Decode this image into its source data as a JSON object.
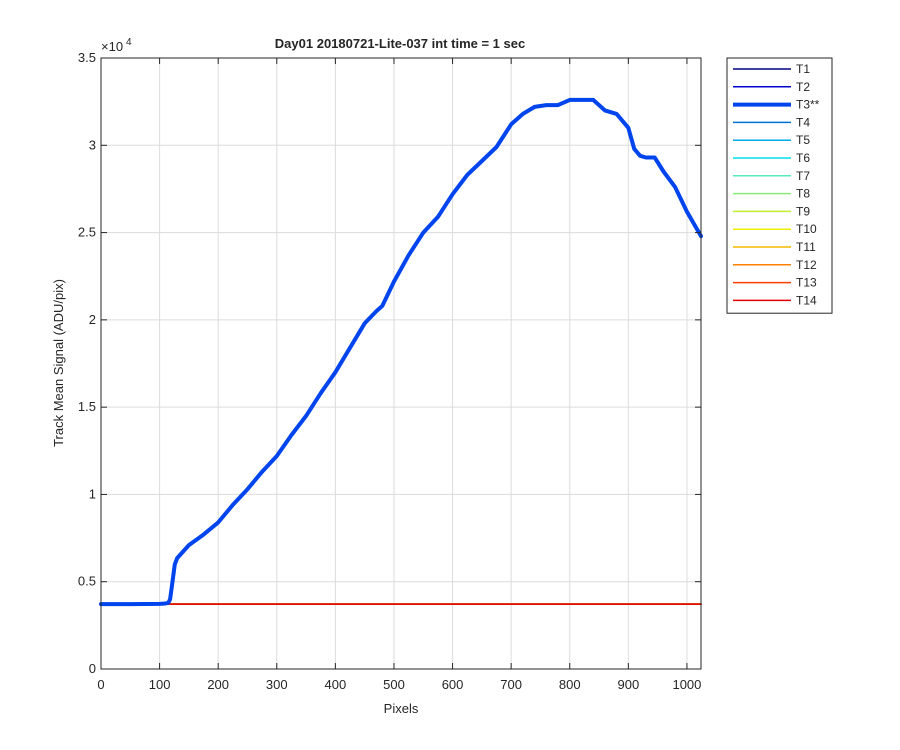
{
  "chart_data": {
    "type": "line",
    "title": "Day01 20180721-Lite-037 int time = 1 sec",
    "xlabel": "Pixels",
    "ylabel": "Track Mean Signal (ADU/pix)",
    "xlim": [
      0,
      1024
    ],
    "ylim": [
      0,
      35000
    ],
    "xticks": [
      0,
      100,
      200,
      300,
      400,
      500,
      600,
      700,
      800,
      900,
      1000
    ],
    "xtick_labels": [
      "0",
      "100",
      "200",
      "300",
      "400",
      "500",
      "600",
      "700",
      "800",
      "900",
      "1000"
    ],
    "yticks": [
      0,
      5000,
      10000,
      15000,
      20000,
      25000,
      30000,
      35000
    ],
    "ytick_labels": [
      "0",
      "0.5",
      "1",
      "1.5",
      "2",
      "2.5",
      "3",
      "3.5"
    ],
    "y_exponent_base": "×10",
    "y_exponent_power": "4",
    "grid": true,
    "legend_position": "outside-right-top",
    "series": [
      {
        "name": "T1",
        "color": "#00007f",
        "width": 1.5,
        "x": [
          0,
          1024
        ],
        "y": [
          3720,
          3720
        ]
      },
      {
        "name": "T2",
        "color": "#0000d0",
        "width": 1.5,
        "x": [
          0,
          1024
        ],
        "y": [
          3720,
          3720
        ]
      },
      {
        "name": "T3**",
        "color": "#0044ee",
        "width": 4,
        "x": [
          0,
          50,
          100,
          110,
          115,
          118,
          122,
          126,
          130,
          150,
          175,
          200,
          225,
          250,
          275,
          300,
          325,
          350,
          375,
          400,
          425,
          450,
          470,
          480,
          500,
          525,
          550,
          575,
          600,
          625,
          650,
          675,
          700,
          720,
          740,
          760,
          780,
          800,
          820,
          840,
          860,
          880,
          900,
          910,
          920,
          930,
          945,
          960,
          980,
          1000,
          1024
        ],
        "y": [
          3720,
          3720,
          3730,
          3750,
          3800,
          4000,
          5000,
          6000,
          6350,
          7100,
          7700,
          8400,
          9400,
          10300,
          11300,
          12200,
          13400,
          14500,
          15800,
          17000,
          18400,
          19800,
          20500,
          20800,
          22200,
          23700,
          25000,
          25900,
          27200,
          28300,
          29100,
          29900,
          31200,
          31800,
          32200,
          32300,
          32300,
          32600,
          32600,
          32600,
          32000,
          31800,
          31000,
          29800,
          29400,
          29300,
          29300,
          28500,
          27600,
          26200,
          24800
        ]
      },
      {
        "name": "T4",
        "color": "#0070dd",
        "width": 1.5,
        "x": [
          0,
          1024
        ],
        "y": [
          3720,
          3720
        ]
      },
      {
        "name": "T5",
        "color": "#00a8ee",
        "width": 1.5,
        "x": [
          0,
          1024
        ],
        "y": [
          3720,
          3720
        ]
      },
      {
        "name": "T6",
        "color": "#00e0ee",
        "width": 1.5,
        "x": [
          0,
          1024
        ],
        "y": [
          3720,
          3720
        ]
      },
      {
        "name": "T7",
        "color": "#55eebb",
        "width": 1.5,
        "x": [
          0,
          1024
        ],
        "y": [
          3720,
          3720
        ]
      },
      {
        "name": "T8",
        "color": "#88ee77",
        "width": 1.5,
        "x": [
          0,
          1024
        ],
        "y": [
          3720,
          3720
        ]
      },
      {
        "name": "T9",
        "color": "#c0ee33",
        "width": 1.5,
        "x": [
          0,
          1024
        ],
        "y": [
          3720,
          3720
        ]
      },
      {
        "name": "T10",
        "color": "#f0ee00",
        "width": 1.5,
        "x": [
          0,
          1024
        ],
        "y": [
          3720,
          3720
        ]
      },
      {
        "name": "T11",
        "color": "#f5b800",
        "width": 1.5,
        "x": [
          0,
          1024
        ],
        "y": [
          3720,
          3720
        ]
      },
      {
        "name": "T12",
        "color": "#ff8000",
        "width": 1.5,
        "x": [
          0,
          1024
        ],
        "y": [
          3720,
          3720
        ]
      },
      {
        "name": "T13",
        "color": "#ff4000",
        "width": 1.5,
        "x": [
          0,
          1024
        ],
        "y": [
          3720,
          3720
        ]
      },
      {
        "name": "T14",
        "color": "#e00000",
        "width": 1.5,
        "x": [
          0,
          1024
        ],
        "y": [
          3720,
          3720
        ]
      }
    ]
  }
}
